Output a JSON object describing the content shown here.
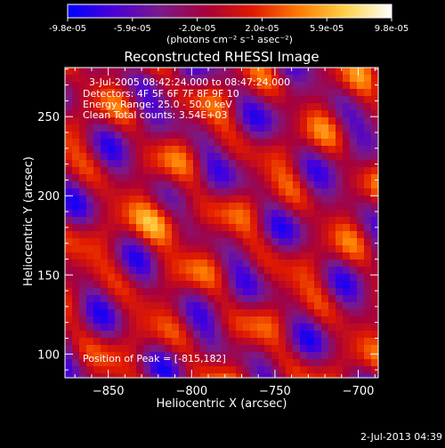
{
  "colorbar": {
    "tick_labels": [
      "-9.8e-05",
      "-5.9e-05",
      "-2.0e-05",
      "2.0e-05",
      "5.9e-05",
      "9.8e-05"
    ],
    "units_label": "(photons cm⁻² s⁻¹ asec⁻²)",
    "colormap": [
      "#0000ff",
      "#4b00d6",
      "#7a1a8a",
      "#a8003a",
      "#e01a00",
      "#ff7a00",
      "#ffd24a",
      "#ffffff"
    ]
  },
  "chart_data": {
    "type": "heatmap",
    "title": "Reconstructed RHESSI Image",
    "xlabel": "Heliocentric X (arcsec)",
    "ylabel": "Heliocentric Y (arcsec)",
    "xlim": [
      -876,
      -688
    ],
    "ylim": [
      85,
      281
    ],
    "x_ticks": [
      -850,
      -800,
      -750,
      -700
    ],
    "y_ticks": [
      100,
      150,
      200,
      250
    ],
    "x_tick_labels": [
      "−850",
      "−800",
      "−750",
      "−700"
    ],
    "y_tick_labels": [
      "100",
      "150",
      "200",
      "250"
    ],
    "annotations": [
      "3-Jul-2005 08:42:24.000 to 08:47:24.000",
      "Detectors: 4F 5F 6F 7F 8F 9F 10",
      "Energy Range: 25.0 - 50.0 keV",
      "Clean    Total counts: 3.54E+03"
    ],
    "peak_label": "Position of Peak = [-815,182]",
    "peak": [
      -815,
      182
    ],
    "value_range": [
      -9.8e-05,
      9.8e-05
    ]
  },
  "footer": {
    "timestamp": "2-Jul-2013 04:39"
  }
}
